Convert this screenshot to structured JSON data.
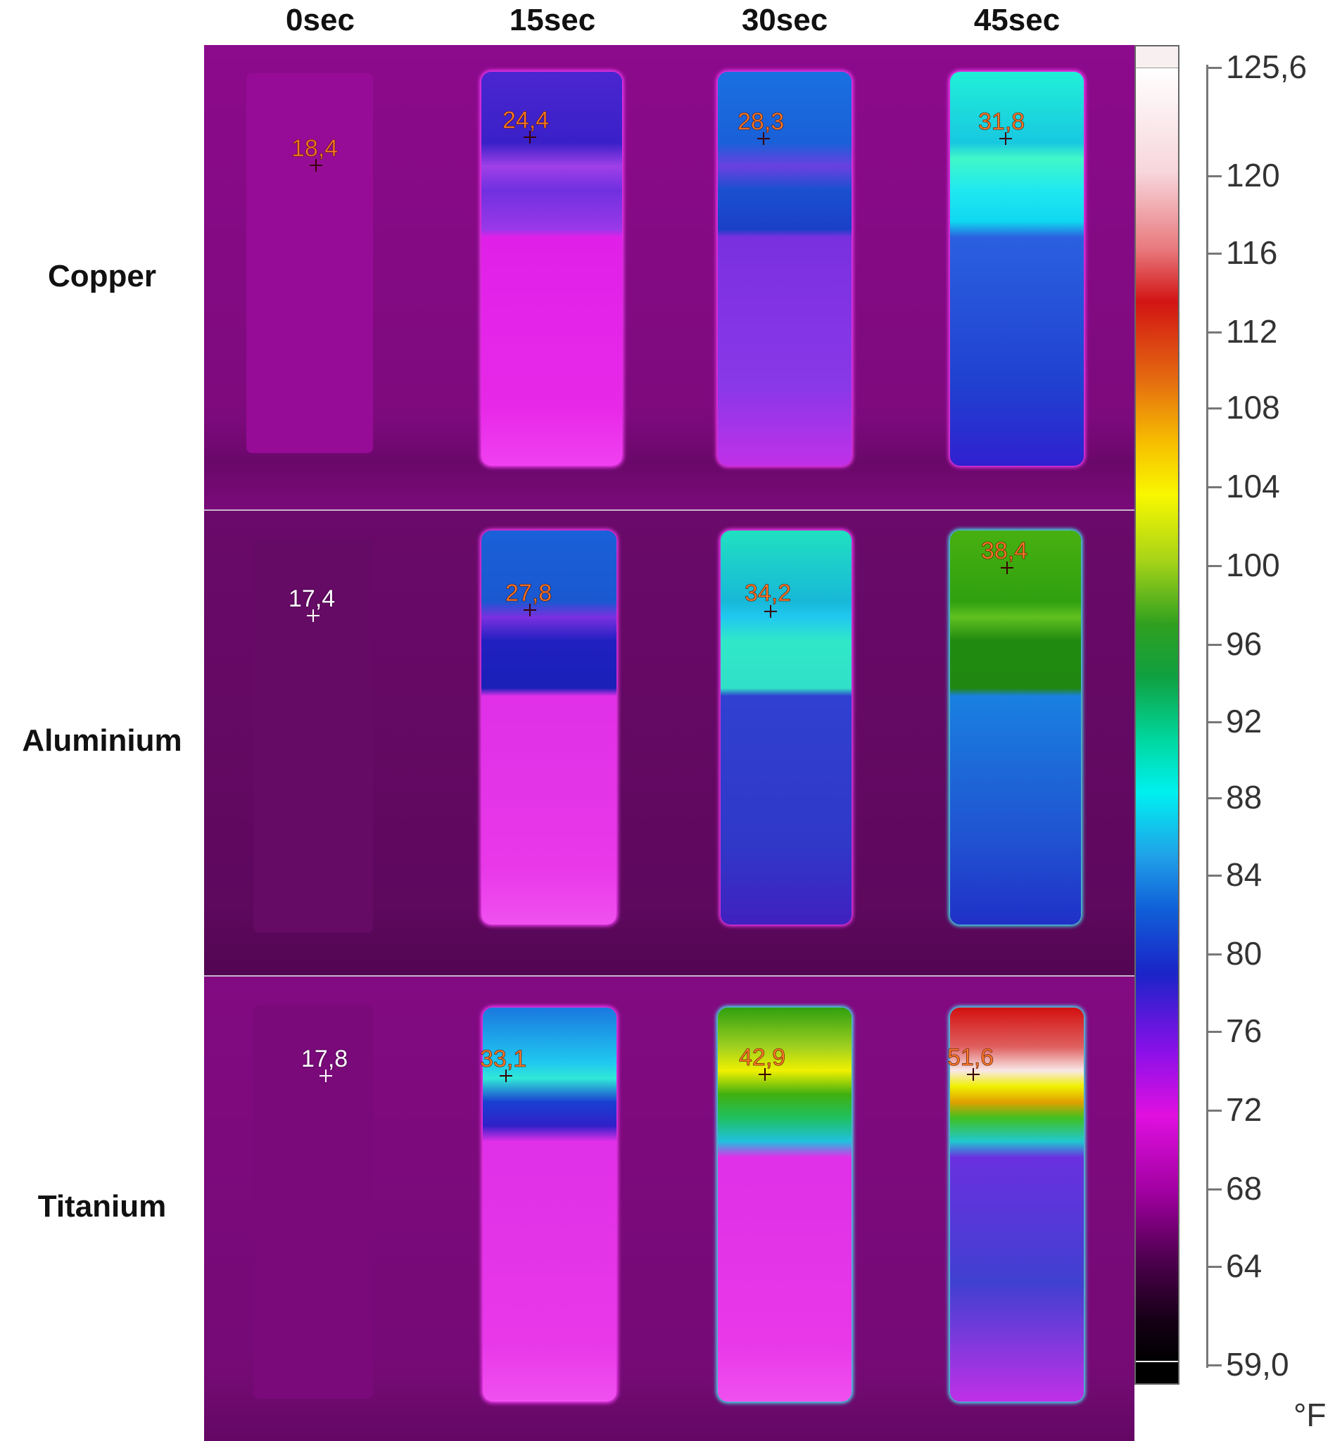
{
  "columns": [
    "0sec",
    "15sec",
    "30sec",
    "45sec"
  ],
  "rows": [
    "Copper",
    "Aluminium",
    "Titanium"
  ],
  "readings": [
    [
      "18,4",
      "24,4",
      "28,3",
      "31,8"
    ],
    [
      "17,4",
      "27,8",
      "34,2",
      "38,4"
    ],
    [
      "17,8",
      "33,1",
      "42,9",
      "51,6"
    ]
  ],
  "scale": {
    "max": "125,6",
    "ticks": [
      "120",
      "116",
      "112",
      "108",
      "104",
      "100",
      "96",
      "92",
      "88",
      "84",
      "80",
      "76",
      "72",
      "68",
      "64"
    ],
    "min": "59,0",
    "unit": "°F"
  },
  "colors": {
    "background_cold": "#8a0a8a",
    "magenta": "#e020e0",
    "blue": "#1a30d0",
    "cyan": "#10e0d0",
    "green": "#30a010",
    "yellow": "#f0f000",
    "red": "#d01010"
  }
}
